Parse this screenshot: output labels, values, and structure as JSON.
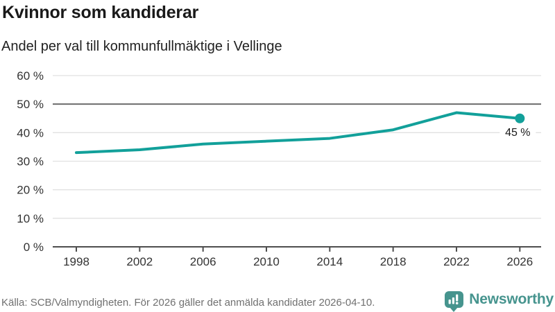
{
  "header": {
    "title": "Kvinnor som kandiderar",
    "subtitle": "Andel per val till kommunfullmäktige i Vellinge"
  },
  "footer": {
    "source": "Källa: SCB/Valmyndigheten. För 2026 gäller det anmälda kandidater 2026-04-10.",
    "brand": "Newsworthy"
  },
  "colors": {
    "line": "#12a09a",
    "grid": "#e1e1e1",
    "axis": "#4d4d4d",
    "reference": "#6b6b6b",
    "tick_text": "#333333",
    "brand": "#46948e",
    "source_text": "#707070",
    "label_bg": "#ffffff"
  },
  "chart_data": {
    "type": "line",
    "title": "Kvinnor som kandiderar",
    "subtitle": "Andel per val till kommunfullmäktige i Vellinge",
    "categories": [
      "1998",
      "2002",
      "2006",
      "2010",
      "2014",
      "2018",
      "2022",
      "2026"
    ],
    "values": [
      33,
      34,
      36,
      37,
      38,
      41,
      47,
      45
    ],
    "unit": "%",
    "ylim": [
      0,
      60
    ],
    "y_ticks": [
      0,
      10,
      20,
      30,
      40,
      50,
      60
    ],
    "y_tick_suffix": " %",
    "reference_line": 50,
    "grid": true,
    "legend_position": "none",
    "endpoint_label": "45 %"
  }
}
